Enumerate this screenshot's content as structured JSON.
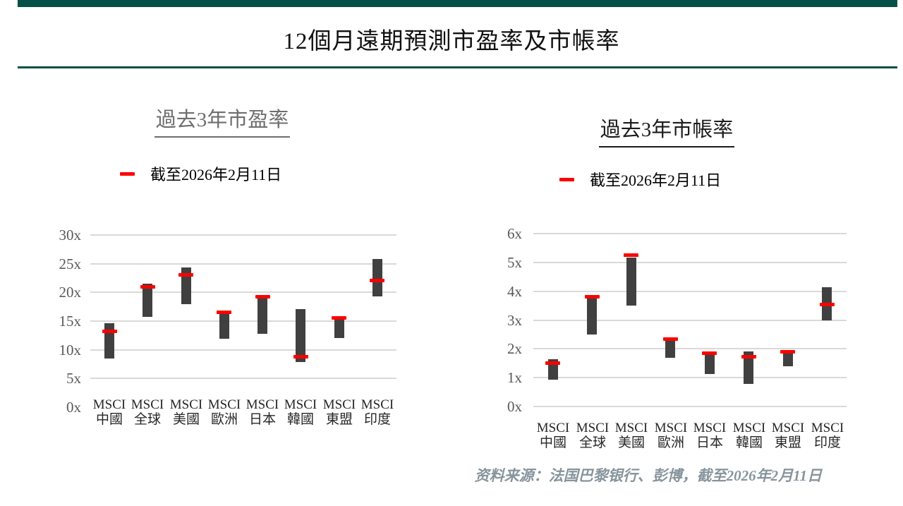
{
  "page": {
    "title": "12個月遠期預測市盈率及市帳率",
    "footer_source": "资料来源：法国巴黎银行、彭博，截至2026年2月11日"
  },
  "colors": {
    "accent_green": "#045046",
    "bar": "#404040",
    "marker_red": "#fe0000",
    "gridline": "#d9d9d9",
    "axis_label": "#595959",
    "category_label": "#262626",
    "left_title": "#6e6e6e",
    "right_title": "#1c1c1c",
    "footer_text": "#87949c"
  },
  "chart_data": [
    {
      "id": "forward-pe",
      "type": "range-bar",
      "title": "過去3年市盈率",
      "legend_label": "截至2026年2月11日",
      "legend_position": "top",
      "grid": true,
      "y_axis": {
        "min": 0,
        "max": 30,
        "step": 5,
        "suffix": "x",
        "zero_gridline": false
      },
      "categories": [
        {
          "line1": "MSCI",
          "line2": "中國"
        },
        {
          "line1": "MSCI",
          "line2": "全球"
        },
        {
          "line1": "MSCI",
          "line2": "美國"
        },
        {
          "line1": "MSCI",
          "line2": "歐洲"
        },
        {
          "line1": "MSCI",
          "line2": "日本"
        },
        {
          "line1": "MSCI",
          "line2": "韓國"
        },
        {
          "line1": "MSCI",
          "line2": "東盟"
        },
        {
          "line1": "MSCI",
          "line2": "印度"
        }
      ],
      "series": [
        {
          "type": "range",
          "low": [
            8.4,
            15.7,
            17.9,
            11.9,
            12.7,
            7.9,
            12.0,
            19.3
          ],
          "high": [
            14.6,
            21.5,
            24.3,
            16.3,
            18.9,
            17.1,
            15.2,
            25.8
          ]
        },
        {
          "type": "marker",
          "values": [
            13.2,
            21.0,
            23.1,
            16.5,
            19.25,
            8.85,
            15.5,
            22.1
          ]
        }
      ]
    },
    {
      "id": "forward-pb",
      "type": "range-bar",
      "title": "過去3年市帳率",
      "legend_label": "截至2026年2月11日",
      "legend_position": "top",
      "grid": true,
      "y_axis": {
        "min": 0,
        "max": 6,
        "step": 1,
        "suffix": "x",
        "zero_gridline": true
      },
      "categories": [
        {
          "line1": "MSCI",
          "line2": "中國"
        },
        {
          "line1": "MSCI",
          "line2": "全球"
        },
        {
          "line1": "MSCI",
          "line2": "美國"
        },
        {
          "line1": "MSCI",
          "line2": "歐洲"
        },
        {
          "line1": "MSCI",
          "line2": "日本"
        },
        {
          "line1": "MSCI",
          "line2": "韓國"
        },
        {
          "line1": "MSCI",
          "line2": "東盟"
        },
        {
          "line1": "MSCI",
          "line2": "印度"
        }
      ],
      "series": [
        {
          "type": "range",
          "low": [
            0.95,
            2.5,
            3.5,
            1.7,
            1.13,
            0.8,
            1.4,
            3.0
          ],
          "high": [
            1.65,
            3.75,
            5.17,
            2.3,
            1.78,
            1.92,
            1.83,
            4.15
          ]
        },
        {
          "type": "marker",
          "values": [
            1.5,
            3.8,
            5.25,
            2.35,
            1.84,
            1.72,
            1.89,
            3.55
          ]
        }
      ]
    }
  ]
}
